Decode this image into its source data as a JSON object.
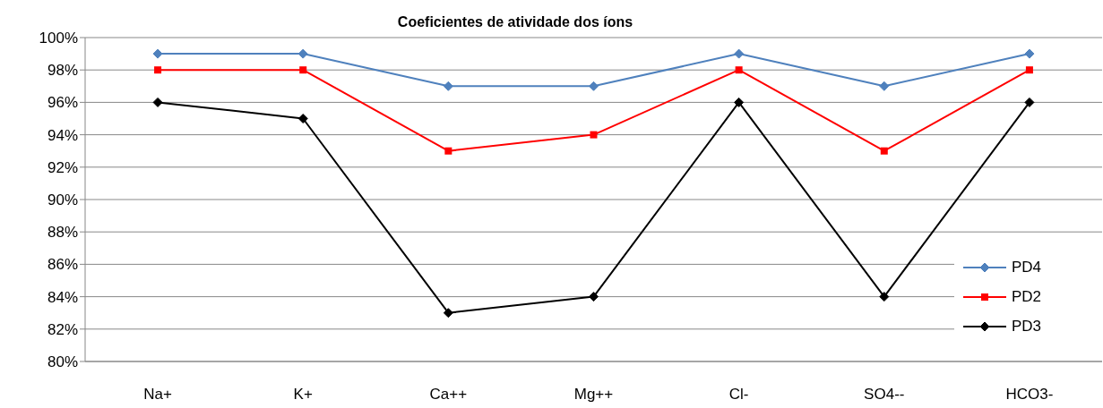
{
  "chart_data": {
    "type": "line",
    "title": "Coeficientes de atividade dos íons",
    "categories": [
      "Na+",
      "K+",
      "Ca++",
      "Mg++",
      "Cl-",
      "SO4--",
      "HCO3-"
    ],
    "series": [
      {
        "name": "PD4",
        "color": "#4f81bd",
        "marker": "diamond",
        "values": [
          99,
          99,
          97,
          97,
          99,
          97,
          99
        ]
      },
      {
        "name": "PD2",
        "color": "#ff0000",
        "marker": "square",
        "values": [
          98,
          98,
          93,
          94,
          98,
          93,
          98
        ]
      },
      {
        "name": "PD3",
        "color": "#000000",
        "marker": "diamond",
        "values": [
          96,
          95,
          83,
          84,
          96,
          84,
          96
        ]
      }
    ],
    "ylim": [
      80,
      100
    ],
    "yticks": [
      {
        "value": 80,
        "label": "80%"
      },
      {
        "value": 82,
        "label": "82%"
      },
      {
        "value": 84,
        "label": "84%"
      },
      {
        "value": 86,
        "label": "86%"
      },
      {
        "value": 88,
        "label": "88%"
      },
      {
        "value": 90,
        "label": "90%"
      },
      {
        "value": 92,
        "label": "92%"
      },
      {
        "value": 94,
        "label": "94%"
      },
      {
        "value": 96,
        "label": "96%"
      },
      {
        "value": 98,
        "label": "98%"
      },
      {
        "value": 100,
        "label": "100%"
      }
    ],
    "grid": "y",
    "legend": "bottom right",
    "line_style": "solid"
  }
}
